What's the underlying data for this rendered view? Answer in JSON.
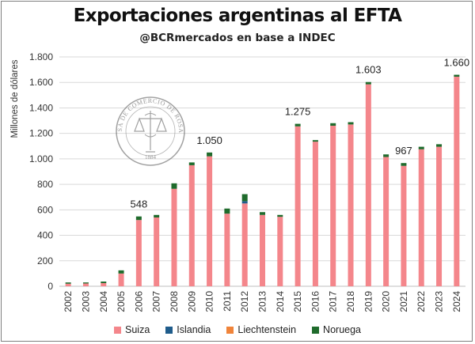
{
  "header": {
    "title": "Exportaciones argentinas al EFTA",
    "subtitle": "@BCRmercados en base a INDEC"
  },
  "colors": {
    "Suiza": "#f4868b",
    "Islandia": "#1f5c8b",
    "Liechtenstein": "#f0843a",
    "Noruega": "#1f6b2c"
  },
  "chart_data": {
    "type": "bar",
    "stacked": true,
    "title": "Exportaciones argentinas al EFTA",
    "subtitle": "@BCRmercados en base a INDEC",
    "ylabel": "Millones de dólares",
    "xlabel": "",
    "ylim": [
      0,
      1800
    ],
    "yticks": [
      0,
      200,
      400,
      600,
      800,
      1000,
      1200,
      1400,
      1600,
      1800
    ],
    "ytick_labels": [
      "0",
      "200",
      "400",
      "600",
      "800",
      "1.000",
      "1.200",
      "1.400",
      "1.600",
      "1.800"
    ],
    "grid": true,
    "legend_position": "bottom",
    "categories": [
      "2002",
      "2003",
      "2004",
      "2005",
      "2006",
      "2007",
      "2008",
      "2009",
      "2010",
      "2011",
      "2012",
      "2013",
      "2014",
      "2015",
      "2016",
      "2017",
      "2018",
      "2019",
      "2020",
      "2021",
      "2022",
      "2023",
      "2024"
    ],
    "series": [
      {
        "name": "Suiza",
        "values": [
          20,
          22,
          25,
          100,
          520,
          540,
          765,
          950,
          1020,
          570,
          650,
          560,
          545,
          1255,
          1135,
          1260,
          1270,
          1585,
          1015,
          945,
          1075,
          1095,
          1645
        ]
      },
      {
        "name": "Islandia",
        "values": [
          0,
          0,
          0,
          0,
          0,
          0,
          0,
          0,
          0,
          0,
          18,
          0,
          0,
          0,
          0,
          0,
          0,
          0,
          0,
          0,
          0,
          0,
          0
        ]
      },
      {
        "name": "Liechtenstein",
        "values": [
          0,
          0,
          0,
          0,
          0,
          0,
          0,
          0,
          0,
          0,
          0,
          0,
          0,
          0,
          0,
          0,
          0,
          0,
          0,
          0,
          0,
          0,
          0
        ]
      },
      {
        "name": "Noruega",
        "values": [
          10,
          8,
          12,
          25,
          28,
          20,
          43,
          22,
          30,
          40,
          55,
          22,
          15,
          20,
          12,
          20,
          18,
          18,
          20,
          22,
          20,
          20,
          15
        ]
      }
    ],
    "data_labels": [
      {
        "category": "2006",
        "text": "548"
      },
      {
        "category": "2010",
        "text": "1.050"
      },
      {
        "category": "2015",
        "text": "1.275"
      },
      {
        "category": "2019",
        "text": "1.603"
      },
      {
        "category": "2021",
        "text": "967"
      },
      {
        "category": "2024",
        "text": "1.660"
      }
    ]
  },
  "logo": {
    "text": "BOLSA DE COMERCIO DE ROSARIO",
    "year": "1884"
  }
}
